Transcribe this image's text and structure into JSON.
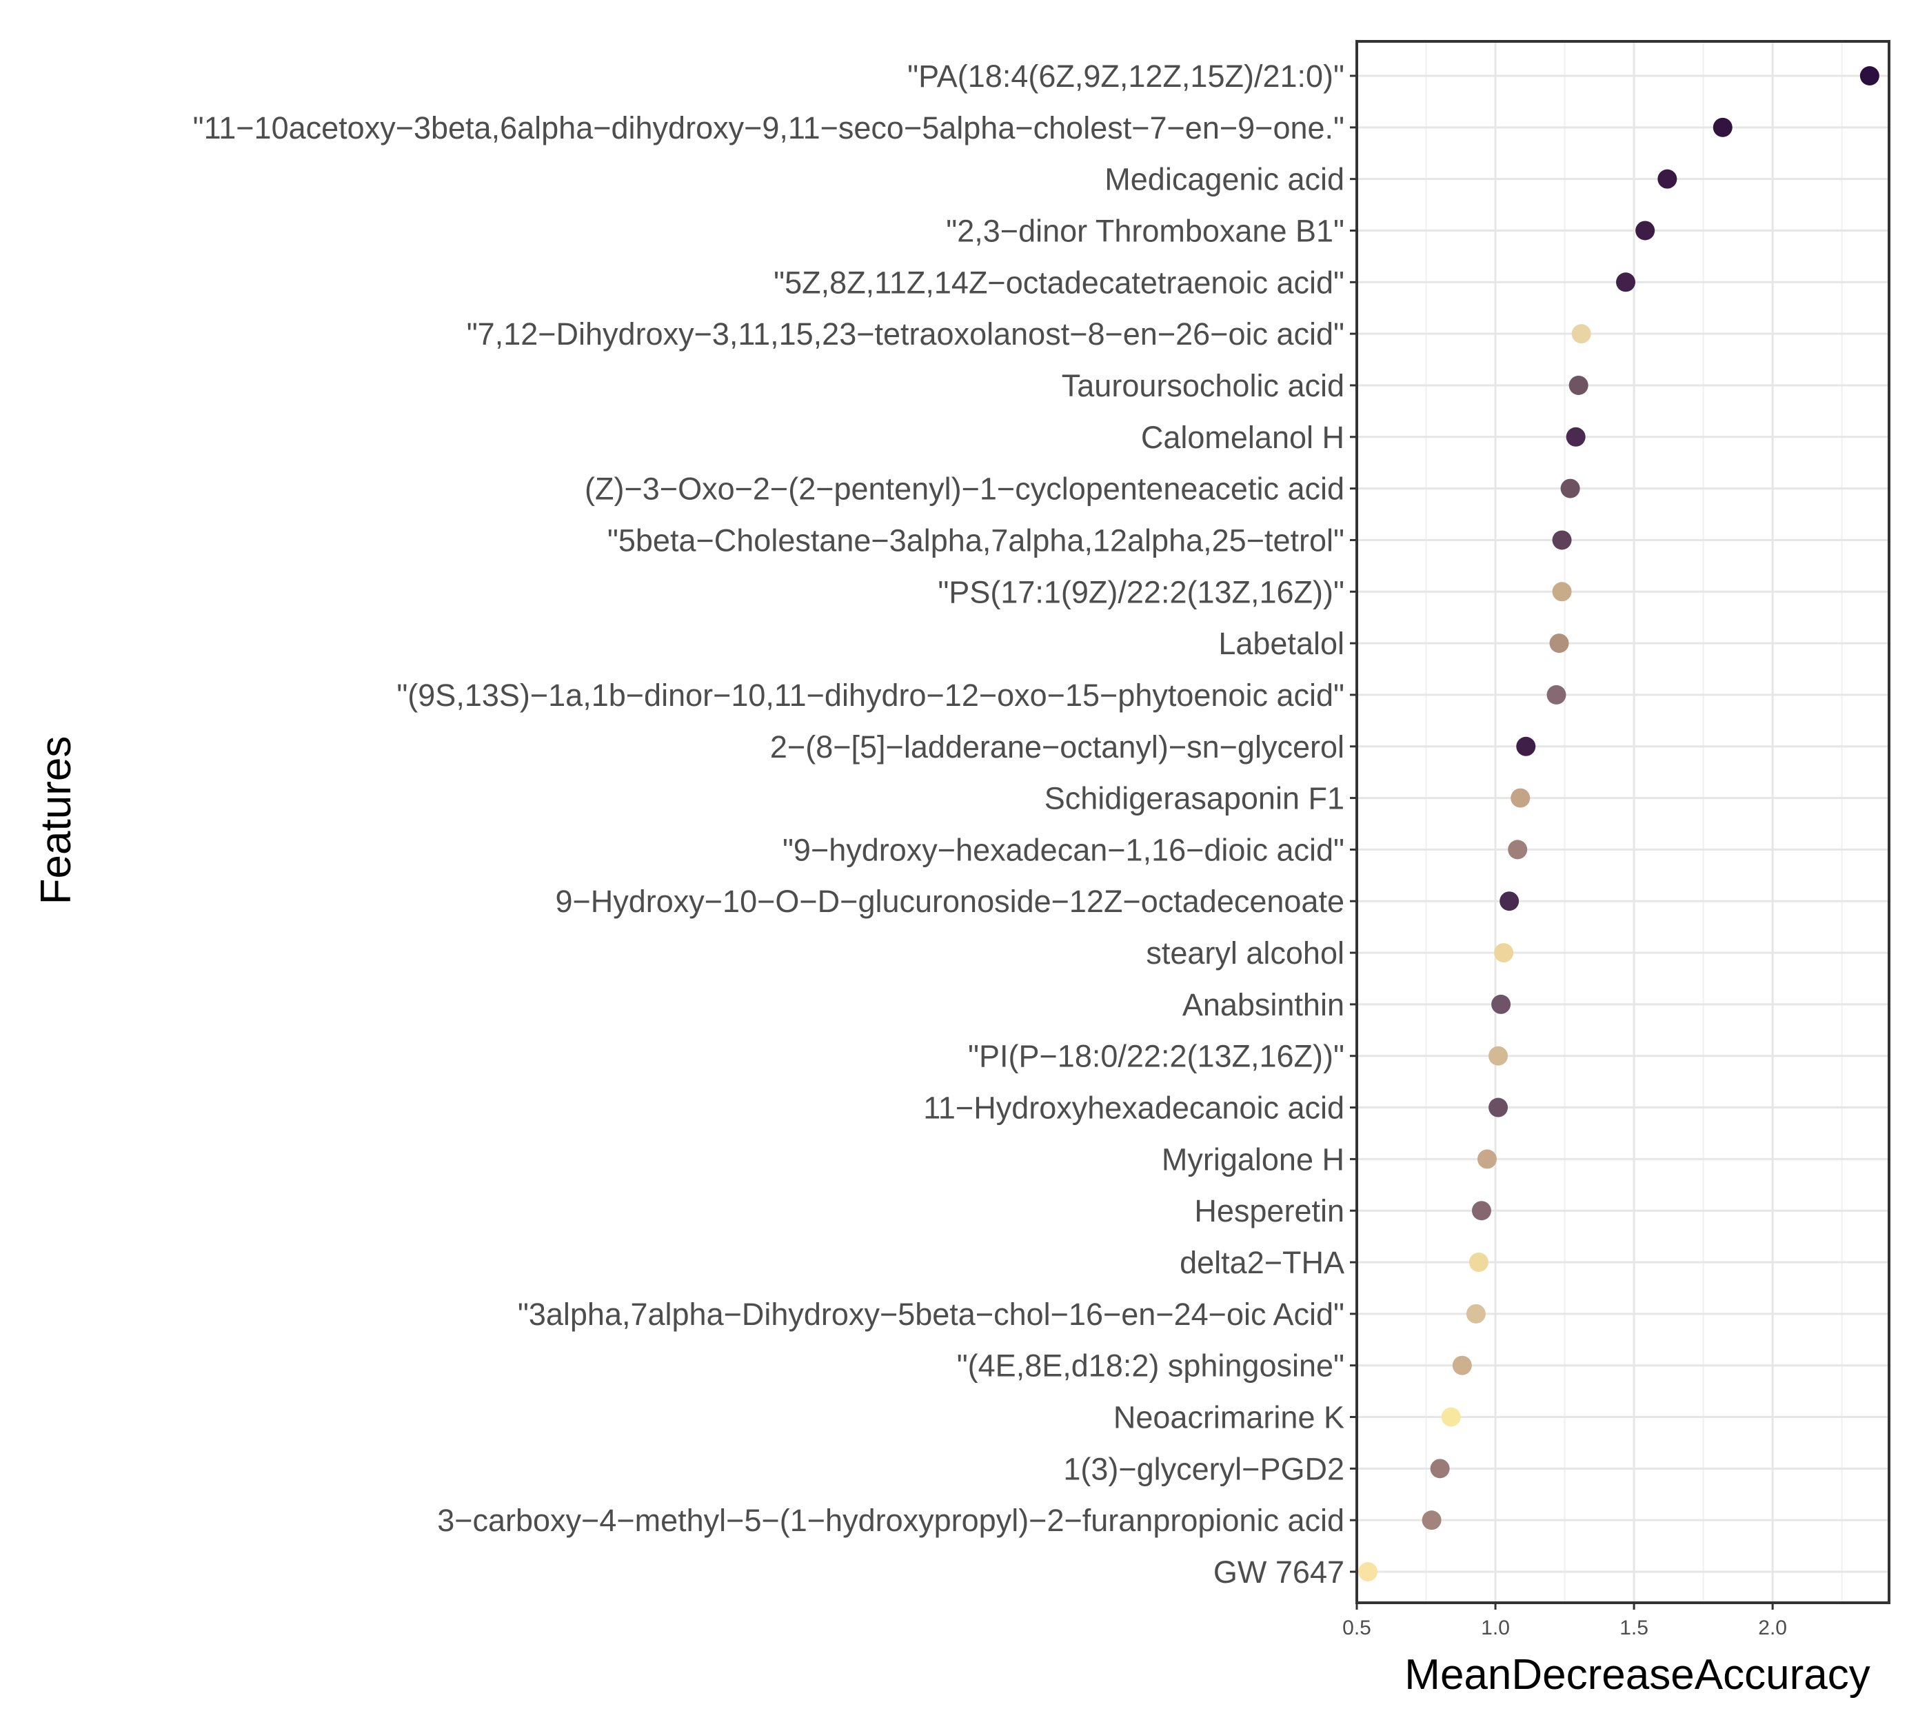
{
  "chart_data": {
    "type": "scatter",
    "subtype": "dot-plot",
    "title": "",
    "xlabel": "MeanDecreaseAccuracy",
    "ylabel": "Features",
    "xlim": [
      0.5,
      2.42
    ],
    "xticks": [
      0.5,
      1.0,
      1.5,
      2.0
    ],
    "xtick_labels": [
      "0.5",
      "1.0",
      "1.5",
      "2.0"
    ],
    "grid": true,
    "legend": "none",
    "points": [
      {
        "feature": "\"PA(18:4(6Z,9Z,12Z,15Z)/21:0)\"",
        "value": 2.35,
        "color": "#2b0f3e"
      },
      {
        "feature": "\"11−10acetoxy−3beta,6alpha−dihydroxy−9,11−seco−5alpha−cholest−7−en−9−one.\"",
        "value": 1.82,
        "color": "#33143f"
      },
      {
        "feature": "Medicagenic acid",
        "value": 1.62,
        "color": "#3a1a45"
      },
      {
        "feature": "\"2,3−dinor Thromboxane B1\"",
        "value": 1.54,
        "color": "#3d1c46"
      },
      {
        "feature": "\"5Z,8Z,11Z,14Z−octadecatetraenoic acid\"",
        "value": 1.47,
        "color": "#41204a"
      },
      {
        "feature": "\"7,12−Dihydroxy−3,11,15,23−tetraoxolanost−8−en−26−oic acid\"",
        "value": 1.31,
        "color": "#e9d4a6"
      },
      {
        "feature": "Tauroursocholic acid",
        "value": 1.3,
        "color": "#6f5464"
      },
      {
        "feature": "Calomelanol H",
        "value": 1.29,
        "color": "#4a2a50"
      },
      {
        "feature": "(Z)−3−Oxo−2−(2−pentenyl)−1−cyclopenteneacetic acid",
        "value": 1.27,
        "color": "#6d5262"
      },
      {
        "feature": "\"5beta−Cholestane−3alpha,7alpha,12alpha,25−tetrol\"",
        "value": 1.24,
        "color": "#5e4158"
      },
      {
        "feature": "\"PS(17:1(9Z)/22:2(13Z,16Z))\"",
        "value": 1.24,
        "color": "#c8ab88"
      },
      {
        "feature": "Labetalol",
        "value": 1.23,
        "color": "#b0917d"
      },
      {
        "feature": "\"(9S,13S)−1a,1b−dinor−10,11−dihydro−12−oxo−15−phytoenoic acid\"",
        "value": 1.22,
        "color": "#856a73"
      },
      {
        "feature": "2−(8−[5]−ladderane−octanyl)−sn−glycerol",
        "value": 1.11,
        "color": "#3f1f48"
      },
      {
        "feature": "Schidigerasaponin F1",
        "value": 1.09,
        "color": "#c4a486"
      },
      {
        "feature": "\"9−hydroxy−hexadecan−1,16−dioic acid\"",
        "value": 1.08,
        "color": "#9e7f7a"
      },
      {
        "feature": "9−Hydroxy−10−O−D−glucuronoside−12Z−octadecenoate",
        "value": 1.05,
        "color": "#4a2b50"
      },
      {
        "feature": "stearyl alcohol",
        "value": 1.03,
        "color": "#eed59b"
      },
      {
        "feature": "Anabsinthin",
        "value": 1.02,
        "color": "#6e5466"
      },
      {
        "feature": "\"PI(P−18:0/22:2(13Z,16Z))\"",
        "value": 1.01,
        "color": "#d4b995"
      },
      {
        "feature": "11−Hydroxyhexadecanoic acid",
        "value": 1.01,
        "color": "#6b5063"
      },
      {
        "feature": "Myrigalone H",
        "value": 0.97,
        "color": "#c7a88a"
      },
      {
        "feature": "Hesperetin",
        "value": 0.95,
        "color": "#85686f"
      },
      {
        "feature": "delta2−THA",
        "value": 0.94,
        "color": "#f0d99c"
      },
      {
        "feature": "\"3alpha,7alpha−Dihydroxy−5beta−chol−16−en−24−oic Acid\"",
        "value": 0.93,
        "color": "#d9c29a"
      },
      {
        "feature": "\"(4E,8E,d18:2) sphingosine\"",
        "value": 0.88,
        "color": "#cdb08d"
      },
      {
        "feature": "Neoacrimarine K",
        "value": 0.84,
        "color": "#f8e79e"
      },
      {
        "feature": "1(3)−glyceryl−PGD2",
        "value": 0.8,
        "color": "#9b7b77"
      },
      {
        "feature": "3−carboxy−4−methyl−5−(1−hydroxypropyl)−2−furanpropionic acid",
        "value": 0.77,
        "color": "#a3847c"
      },
      {
        "feature": "GW 7647",
        "value": 0.54,
        "color": "#f8e3a4"
      }
    ]
  }
}
